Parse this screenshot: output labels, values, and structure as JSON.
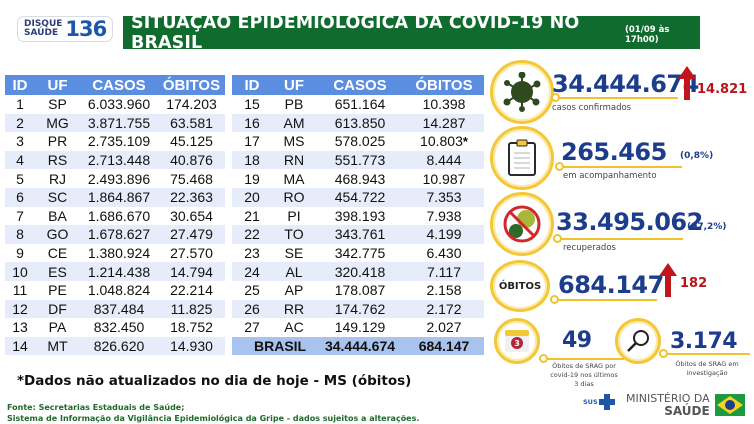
{
  "header": {
    "logo_line1": "DISQUE",
    "logo_line2": "SAÚDE",
    "logo_number": "136",
    "title": "SITUAÇÃO EPIDEMIOLÓGICA DA COVID-19 NO BRASIL",
    "date": "(01/09 às 17h00)"
  },
  "table": {
    "columns": [
      "ID",
      "UF",
      "CASOS",
      "ÓBITOS"
    ],
    "left_rows": [
      {
        "id": "1",
        "uf": "SP",
        "casos": "6.033.960",
        "obitos": "174.203"
      },
      {
        "id": "2",
        "uf": "MG",
        "casos": "3.871.755",
        "obitos": "63.581"
      },
      {
        "id": "3",
        "uf": "PR",
        "casos": "2.735.109",
        "obitos": "45.125"
      },
      {
        "id": "4",
        "uf": "RS",
        "casos": "2.713.448",
        "obitos": "40.876"
      },
      {
        "id": "5",
        "uf": "RJ",
        "casos": "2.493.896",
        "obitos": "75.468"
      },
      {
        "id": "6",
        "uf": "SC",
        "casos": "1.864.867",
        "obitos": "22.363"
      },
      {
        "id": "7",
        "uf": "BA",
        "casos": "1.686.670",
        "obitos": "30.654"
      },
      {
        "id": "8",
        "uf": "GO",
        "casos": "1.678.627",
        "obitos": "27.479"
      },
      {
        "id": "9",
        "uf": "CE",
        "casos": "1.380.924",
        "obitos": "27.570"
      },
      {
        "id": "10",
        "uf": "ES",
        "casos": "1.214.438",
        "obitos": "14.794"
      },
      {
        "id": "11",
        "uf": "PE",
        "casos": "1.048.824",
        "obitos": "22.214"
      },
      {
        "id": "12",
        "uf": "DF",
        "casos": "837.484",
        "obitos": "11.825"
      },
      {
        "id": "13",
        "uf": "PA",
        "casos": "832.450",
        "obitos": "18.752"
      },
      {
        "id": "14",
        "uf": "MT",
        "casos": "826.620",
        "obitos": "14.930"
      }
    ],
    "right_rows": [
      {
        "id": "15",
        "uf": "PB",
        "casos": "651.164",
        "obitos": "10.398"
      },
      {
        "id": "16",
        "uf": "AM",
        "casos": "613.850",
        "obitos": "14.287"
      },
      {
        "id": "17",
        "uf": "MS",
        "casos": "578.025",
        "obitos": "10.803",
        "note": "*"
      },
      {
        "id": "18",
        "uf": "RN",
        "casos": "551.773",
        "obitos": "8.444"
      },
      {
        "id": "19",
        "uf": "MA",
        "casos": "468.943",
        "obitos": "10.987"
      },
      {
        "id": "20",
        "uf": "RO",
        "casos": "454.722",
        "obitos": "7.353"
      },
      {
        "id": "21",
        "uf": "PI",
        "casos": "398.193",
        "obitos": "7.938"
      },
      {
        "id": "22",
        "uf": "TO",
        "casos": "343.761",
        "obitos": "4.199"
      },
      {
        "id": "23",
        "uf": "SE",
        "casos": "342.775",
        "obitos": "6.430"
      },
      {
        "id": "24",
        "uf": "AL",
        "casos": "320.418",
        "obitos": "7.117"
      },
      {
        "id": "25",
        "uf": "AP",
        "casos": "178.087",
        "obitos": "2.158"
      },
      {
        "id": "26",
        "uf": "RR",
        "casos": "174.762",
        "obitos": "2.172"
      },
      {
        "id": "27",
        "uf": "AC",
        "casos": "149.129",
        "obitos": "2.027"
      }
    ],
    "total": {
      "label": "BRASIL",
      "casos": "34.444.674",
      "obitos": "684.147"
    }
  },
  "stats": {
    "confirmed": {
      "value": "34.444.674",
      "label": "casos confirmados",
      "delta": "14.821",
      "icon": "virus-icon"
    },
    "monitoring": {
      "value": "265.465",
      "label": "em acompanhamento",
      "pct": "(0,8%)",
      "icon": "clipboard-icon"
    },
    "recovered": {
      "value": "33.495.062",
      "label": "recuperados",
      "pct": "(97,2%)",
      "icon": "no-virus-icon"
    },
    "deaths": {
      "badge": "ÓBITOS",
      "value": "684.147",
      "delta": "182"
    },
    "srag_recent": {
      "value": "49",
      "label_lines": [
        "Óbitos de SRAG por",
        "covid-19 nos últimos",
        "3 dias"
      ],
      "calendar_number": "3",
      "icon": "calendar-icon"
    },
    "srag_investigation": {
      "value": "3.174",
      "label_lines": [
        "Óbitos de SRAG em",
        "investigação"
      ],
      "icon": "magnifier-icon"
    }
  },
  "footnote": "*Dados não atualizados no dia de hoje - MS (óbitos)",
  "source_lines": [
    "Fonte: Secretarias Estaduais de Saúde;",
    "Sistema de Informação da Vigilância Epidemiológica da Gripe - dados sujeitos a alterações."
  ],
  "footer_logos": {
    "sus": "SUS",
    "ministry_line1": "MINISTÉRIO DA",
    "ministry_line2": "SAÚDE"
  },
  "colors": {
    "title_green": "#106b2e",
    "table_header_blue": "#5b8ee0",
    "row_alt": "#e6ecf9",
    "total_row": "#a9c3ef",
    "stat_blue": "#1c3c8c",
    "ring_yellow": "#f3c736",
    "delta_red": "#b8141b",
    "source_green": "#1e6a2a"
  }
}
